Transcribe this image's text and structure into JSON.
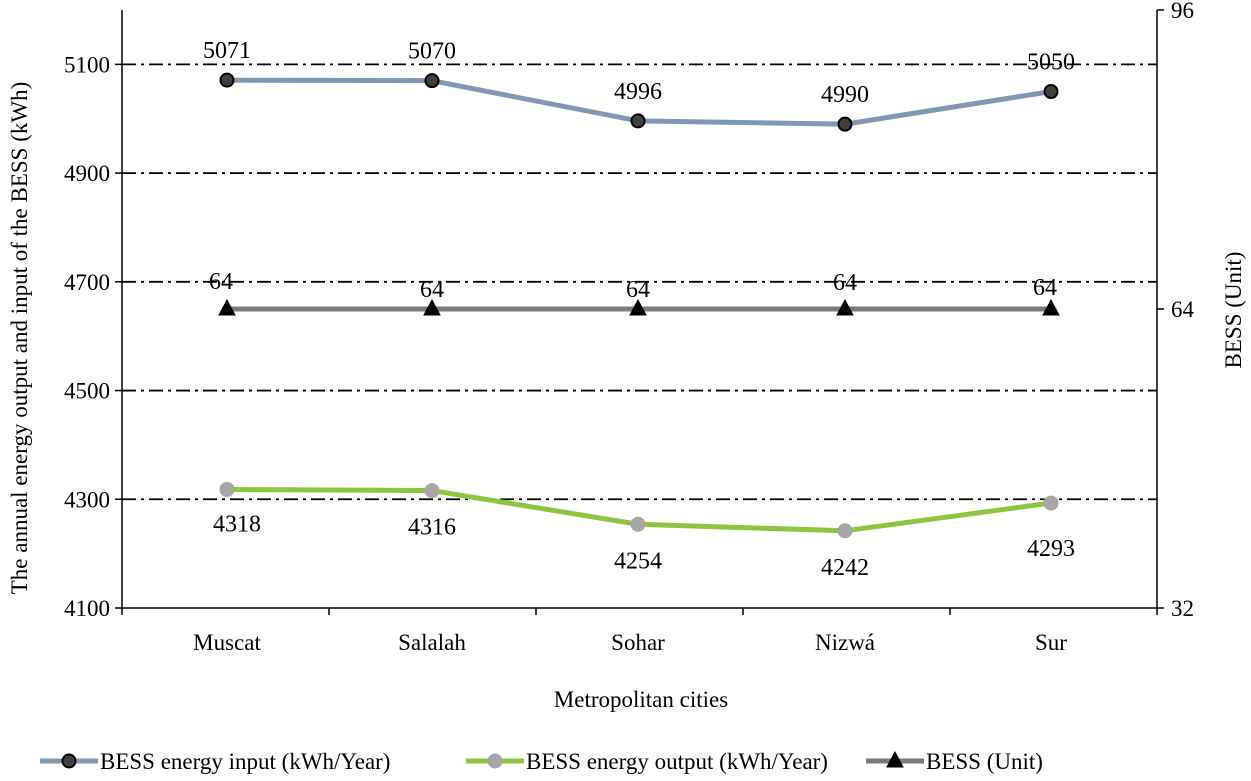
{
  "chart_data": {
    "type": "line",
    "categories": [
      "Muscat",
      "Salalah",
      "Sohar",
      "Nizwá",
      "Sur"
    ],
    "xlabel": "Metropolitan cities",
    "ylabel": "The annual energy output and input of the BESS (kWh)",
    "ylabel_right": "BESS (Unit)",
    "ylim": [
      4100,
      5200
    ],
    "yticks": [
      4100,
      4300,
      4500,
      4700,
      4900,
      5100
    ],
    "ylim_right": [
      32,
      96
    ],
    "yticks_right": [
      32,
      64,
      96
    ],
    "grid": "horizontal dash-dot",
    "legend_position": "bottom",
    "series": [
      {
        "name": "BESS energy input (kWh/Year)",
        "axis": "left",
        "values": [
          5071,
          5070,
          4996,
          4990,
          5050
        ],
        "labels": [
          "5071",
          "5070",
          "4996",
          "4990",
          "5050"
        ],
        "line_color": "#7f96b4",
        "marker": "circle",
        "marker_fill": "#404040",
        "marker_stroke": "#000000"
      },
      {
        "name": "BESS energy output (kWh/Year)",
        "axis": "left",
        "values": [
          4318,
          4316,
          4254,
          4242,
          4293
        ],
        "labels": [
          "4318",
          "4316",
          "4254",
          "4242",
          "4293"
        ],
        "line_color": "#8cc63f",
        "marker": "circle",
        "marker_fill": "#a6a6a6",
        "marker_stroke": "#a6a6a6"
      },
      {
        "name": "BESS (Unit)",
        "axis": "right",
        "values": [
          64,
          64,
          64,
          64,
          64
        ],
        "labels": [
          "64",
          "64",
          "64",
          "64",
          "64"
        ],
        "line_color": "#7a7a7a",
        "marker": "triangle",
        "marker_fill": "#000000",
        "marker_stroke": "#000000"
      }
    ]
  }
}
